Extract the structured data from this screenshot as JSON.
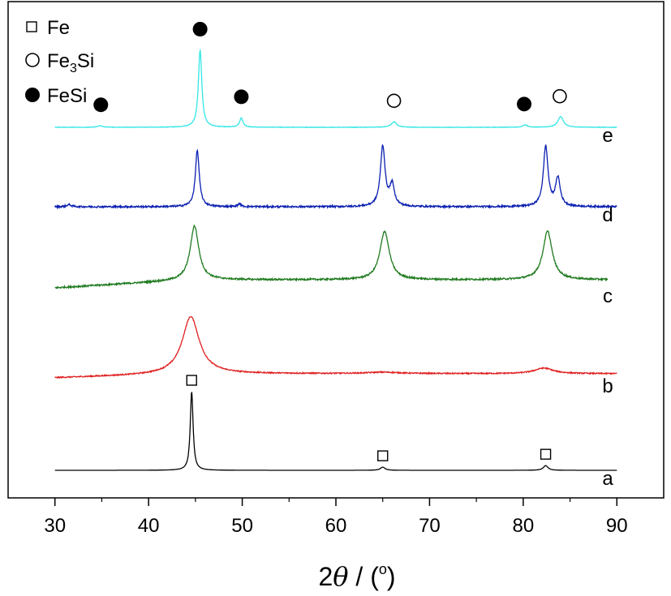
{
  "chart_data": {
    "type": "line",
    "xlabel_parts": {
      "num": "2",
      "sym": "θ",
      "sep": " / (",
      "deg": "o",
      "close": ")"
    },
    "ylabel": "",
    "xlim": [
      25,
      95
    ],
    "x_ticks": [
      "30",
      "40",
      "50",
      "60",
      "70",
      "80",
      "90"
    ],
    "x_tick_values": [
      30,
      40,
      50,
      60,
      70,
      80,
      90
    ],
    "grid": false,
    "legend_position": "top-left",
    "legend": [
      {
        "label": "Fe",
        "marker": "open-square"
      },
      {
        "label_main": "Fe",
        "label_sub": "3",
        "label_tail": "Si",
        "marker": "open-circle"
      },
      {
        "label": "FeSi",
        "marker": "filled-circle"
      }
    ],
    "series": [
      {
        "name": "a",
        "color": "#000000",
        "x_range": [
          30,
          90
        ],
        "baseline": 0,
        "peaks": [
          {
            "x": 44.6,
            "height": 1.0,
            "width": 0.18
          },
          {
            "x": 65.0,
            "height": 0.04,
            "width": 0.3
          },
          {
            "x": 82.4,
            "height": 0.06,
            "width": 0.3
          }
        ],
        "noise": 0.0,
        "slope": 0
      },
      {
        "name": "b",
        "color": "#e02020",
        "x_range": [
          30,
          90
        ],
        "baseline": 0,
        "peaks": [
          {
            "x": 44.5,
            "height": 0.82,
            "width": 1.1
          },
          {
            "x": 65.0,
            "height": 0.02,
            "width": 2.0
          },
          {
            "x": 82.2,
            "height": 0.08,
            "width": 1.2
          }
        ],
        "noise": 0.008,
        "slope": 0.06
      },
      {
        "name": "c",
        "color": "#1f7a1f",
        "x_range": [
          30,
          89
        ],
        "baseline": 0,
        "peaks": [
          {
            "x": 44.9,
            "height": 0.8,
            "width": 0.55
          },
          {
            "x": 65.2,
            "height": 0.72,
            "width": 0.6
          },
          {
            "x": 82.6,
            "height": 0.72,
            "width": 0.6
          }
        ],
        "noise": 0.012,
        "slope": 0.12
      },
      {
        "name": "d",
        "color": "#0a1fb0",
        "x_range": [
          30,
          90
        ],
        "baseline": 0,
        "peaks": [
          {
            "x": 45.2,
            "height": 0.8,
            "width": 0.25
          },
          {
            "x": 49.7,
            "height": 0.04,
            "width": 0.2
          },
          {
            "x": 65.0,
            "height": 0.85,
            "width": 0.3
          },
          {
            "x": 66.0,
            "height": 0.3,
            "width": 0.3
          },
          {
            "x": 82.4,
            "height": 0.85,
            "width": 0.3
          },
          {
            "x": 83.7,
            "height": 0.4,
            "width": 0.3
          },
          {
            "x": 31.5,
            "height": 0.03,
            "width": 0.3
          }
        ],
        "noise": 0.012,
        "slope": 0
      },
      {
        "name": "e",
        "color": "#33e6e6",
        "x_range": [
          30,
          90
        ],
        "baseline": 0,
        "peaks": [
          {
            "x": 45.5,
            "height": 1.0,
            "width": 0.22
          },
          {
            "x": 49.9,
            "height": 0.12,
            "width": 0.22
          },
          {
            "x": 34.8,
            "height": 0.02,
            "width": 0.3
          },
          {
            "x": 66.2,
            "height": 0.07,
            "width": 0.35
          },
          {
            "x": 80.2,
            "height": 0.03,
            "width": 0.3
          },
          {
            "x": 84.0,
            "height": 0.14,
            "width": 0.35
          }
        ],
        "noise": 0.003,
        "slope": 0
      }
    ],
    "peak_markers": [
      {
        "series": "a",
        "x": 44.6,
        "marker": "open-square"
      },
      {
        "series": "a",
        "x": 65.0,
        "marker": "open-square"
      },
      {
        "series": "a",
        "x": 82.4,
        "marker": "open-square"
      },
      {
        "series": "e",
        "x": 45.5,
        "marker": "open-circle"
      },
      {
        "series": "e",
        "x": 45.5,
        "marker": "filled-circle"
      },
      {
        "series": "e",
        "x": 34.9,
        "marker": "filled-circle"
      },
      {
        "series": "e",
        "x": 49.9,
        "marker": "filled-circle"
      },
      {
        "series": "e",
        "x": 66.2,
        "marker": "open-circle"
      },
      {
        "series": "e",
        "x": 80.1,
        "marker": "filled-circle"
      },
      {
        "series": "e",
        "x": 83.9,
        "marker": "open-circle"
      }
    ]
  }
}
